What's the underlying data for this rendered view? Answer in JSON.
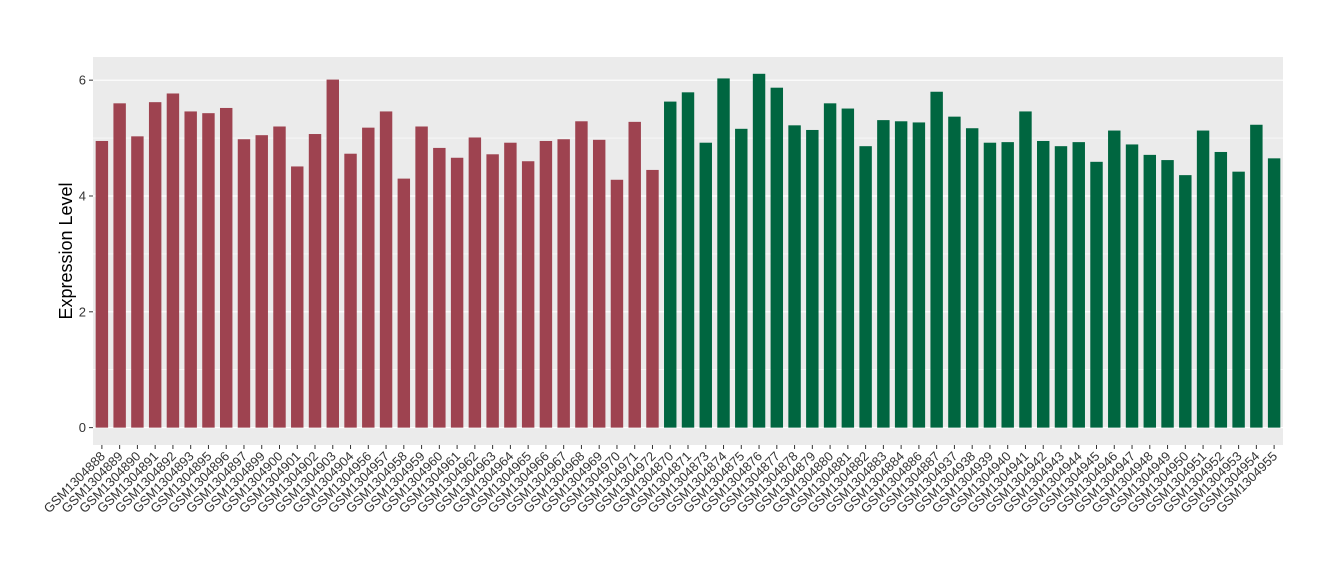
{
  "chart_data": {
    "type": "bar",
    "title": "",
    "xlabel": "",
    "ylabel": "Expression Level",
    "ylim": [
      -0.3,
      6.4
    ],
    "yticks": [
      0,
      2,
      4,
      6
    ],
    "grid": true,
    "legend": "none",
    "colors": {
      "group1": "#9e4350",
      "group2": "#006640",
      "panel": "#ebebeb",
      "grid": "#ffffff"
    },
    "categories": [
      "GSM1304888",
      "GSM1304889",
      "GSM1304890",
      "GSM1304891",
      "GSM1304892",
      "GSM1304893",
      "GSM1304895",
      "GSM1304896",
      "GSM1304897",
      "GSM1304899",
      "GSM1304900",
      "GSM1304901",
      "GSM1304902",
      "GSM1304903",
      "GSM1304904",
      "GSM1304956",
      "GSM1304957",
      "GSM1304958",
      "GSM1304959",
      "GSM1304960",
      "GSM1304961",
      "GSM1304962",
      "GSM1304963",
      "GSM1304964",
      "GSM1304965",
      "GSM1304966",
      "GSM1304967",
      "GSM1304968",
      "GSM1304969",
      "GSM1304970",
      "GSM1304971",
      "GSM1304972",
      "GSM1304870",
      "GSM1304871",
      "GSM1304873",
      "GSM1304874",
      "GSM1304875",
      "GSM1304876",
      "GSM1304877",
      "GSM1304878",
      "GSM1304879",
      "GSM1304880",
      "GSM1304881",
      "GSM1304882",
      "GSM1304883",
      "GSM1304884",
      "GSM1304886",
      "GSM1304887",
      "GSM1304937",
      "GSM1304938",
      "GSM1304939",
      "GSM1304940",
      "GSM1304941",
      "GSM1304942",
      "GSM1304943",
      "GSM1304944",
      "GSM1304945",
      "GSM1304946",
      "GSM1304947",
      "GSM1304948",
      "GSM1304949",
      "GSM1304950",
      "GSM1304951",
      "GSM1304952",
      "GSM1304953",
      "GSM1304954",
      "GSM1304955"
    ],
    "values": [
      4.95,
      5.6,
      5.03,
      5.62,
      5.77,
      5.46,
      5.43,
      5.52,
      4.98,
      5.05,
      5.2,
      4.51,
      5.07,
      6.01,
      4.73,
      5.18,
      5.46,
      4.3,
      5.2,
      4.83,
      4.66,
      5.01,
      4.72,
      4.92,
      4.6,
      4.95,
      4.98,
      5.29,
      4.97,
      4.28,
      5.28,
      4.45,
      5.63,
      5.79,
      4.92,
      6.03,
      5.16,
      6.11,
      5.87,
      5.22,
      5.14,
      5.6,
      5.51,
      4.86,
      5.31,
      5.29,
      5.27,
      5.8,
      5.37,
      5.17,
      4.92,
      4.93,
      5.46,
      4.95,
      4.86,
      4.93,
      4.59,
      5.13,
      4.89,
      4.71,
      4.62,
      4.36,
      5.13,
      4.76,
      4.42,
      5.23,
      4.65
    ],
    "group_sizes": [
      32,
      35
    ]
  }
}
